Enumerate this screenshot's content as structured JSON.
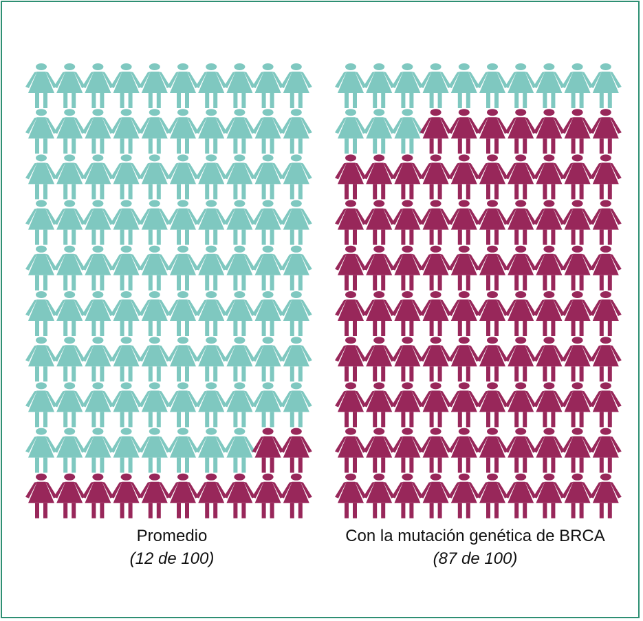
{
  "colors": {
    "frame": "#2e8f73",
    "unaffected": "#7fc8c0",
    "affected": "#98275a"
  },
  "chart_data": [
    {
      "type": "pictograph",
      "title": "Promedio",
      "subtitle": "(12 de 100)",
      "total": 100,
      "affected": 12,
      "rows": 10,
      "cols": 10,
      "icon": "woman-icon"
    },
    {
      "type": "pictograph",
      "title": "Con la mutación genética de BRCA",
      "subtitle": "(87 de 100)",
      "total": 100,
      "affected": 87,
      "rows": 10,
      "cols": 10,
      "icon": "woman-icon"
    }
  ]
}
